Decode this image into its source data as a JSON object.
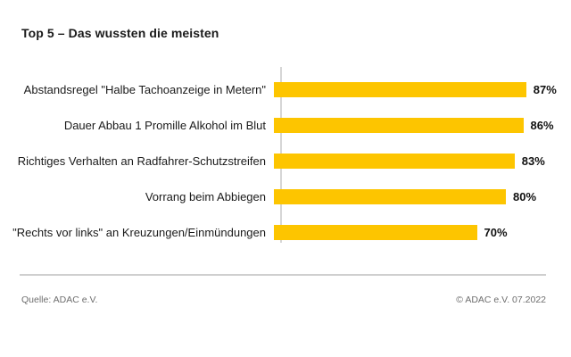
{
  "title": "Top 5 – Das wussten die meisten",
  "chart_data": {
    "type": "bar",
    "orientation": "horizontal",
    "title": "Top 5 – Das wussten die meisten",
    "categories": [
      "Abstandsregel \"Halbe Tachoanzeige in Metern\"",
      "Dauer Abbau 1 Promille Alkohol im Blut",
      "Richtiges Verhalten an Radfahrer-Schutzstreifen",
      "Vorrang beim Abbiegen",
      "\"Rechts vor links\" an Kreuzungen/Einmündungen"
    ],
    "values": [
      87,
      86,
      83,
      80,
      70
    ],
    "value_suffix": "%",
    "value_labels_position": "end",
    "xlim": [
      0,
      100
    ],
    "grid": false,
    "legend": false,
    "bar_color": "#FDC500",
    "axis_line_color": "#d6d6d6"
  },
  "footer": {
    "source": "Quelle: ADAC e.V.",
    "copyright": "© ADAC e.V. 07.2022"
  }
}
